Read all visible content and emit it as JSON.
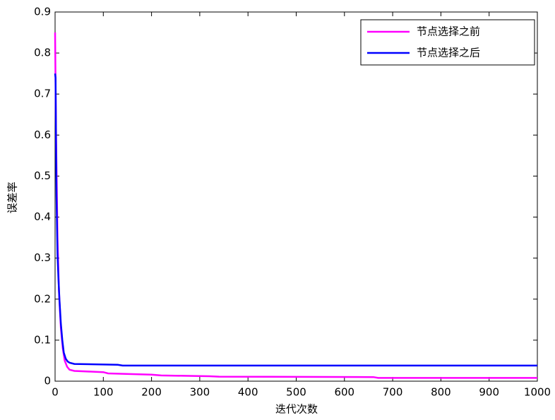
{
  "chart_data": {
    "type": "line",
    "xlabel": "迭代次数",
    "ylabel": "误差率",
    "xlim": [
      0,
      1000
    ],
    "ylim": [
      0,
      0.9
    ],
    "xticks": [
      0,
      100,
      200,
      300,
      400,
      500,
      600,
      700,
      800,
      900,
      1000
    ],
    "yticks": [
      0,
      0.1,
      0.2,
      0.3,
      0.4,
      0.5,
      0.6,
      0.7,
      0.8,
      0.9
    ],
    "grid": false,
    "legend": "top-right",
    "series": [
      {
        "name": "节点选择之前",
        "color": "#ff00ff",
        "x": [
          0,
          2,
          5,
          8,
          12,
          16,
          20,
          25,
          30,
          40,
          100,
          110,
          200,
          220,
          320,
          340,
          660,
          670,
          1000
        ],
        "values": [
          0.85,
          0.6,
          0.35,
          0.22,
          0.13,
          0.08,
          0.05,
          0.035,
          0.028,
          0.025,
          0.022,
          0.019,
          0.016,
          0.014,
          0.012,
          0.011,
          0.01,
          0.008,
          0.008
        ]
      },
      {
        "name": "节点选择之后",
        "color": "#0000ff",
        "x": [
          0,
          1,
          2,
          3,
          5,
          7,
          9,
          12,
          15,
          18,
          22,
          26,
          30,
          40,
          130,
          140,
          1000
        ],
        "values": [
          0.75,
          0.74,
          0.58,
          0.45,
          0.31,
          0.25,
          0.2,
          0.14,
          0.1,
          0.07,
          0.055,
          0.048,
          0.045,
          0.042,
          0.04,
          0.038,
          0.038
        ]
      }
    ]
  }
}
